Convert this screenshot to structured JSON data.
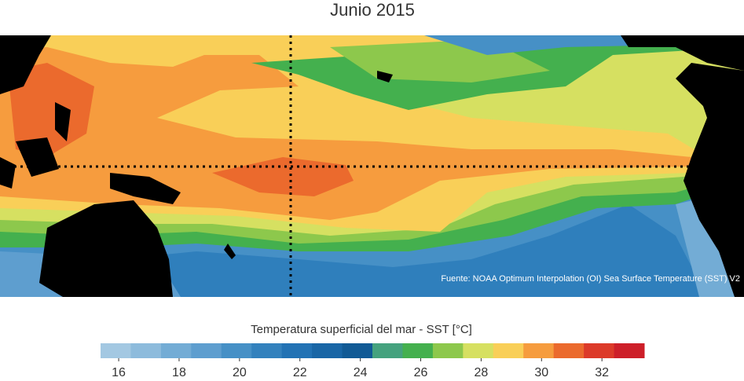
{
  "title": "Junio 2015",
  "source": "Fuente: NOAA Optimum Interpolation (OI) Sea Surface Temperature (SST) V2",
  "colorbar": {
    "label": "Temperatura superficial del mar - SST  [°C]",
    "bins": [
      15.4,
      16.4,
      17.4,
      18.4,
      19.4,
      20.4,
      21.4,
      22.4,
      23.4,
      24.4,
      25.4,
      26.4,
      27.4,
      28.4,
      29.4,
      30.4,
      31.4,
      32.4,
      33.4
    ],
    "colors": [
      "#a3c8e2",
      "#8dbbdc",
      "#73acd5",
      "#5e9ecf",
      "#4690c6",
      "#3381bd",
      "#2272b4",
      "#1966a6",
      "#115a95",
      "#45a27e",
      "#44b04e",
      "#8dc84c",
      "#d6e061",
      "#f9cf58",
      "#f69c3e",
      "#eb6a2d",
      "#dc3a29",
      "#cd1f29",
      "#b21e24"
    ],
    "ticks": [
      16,
      18,
      20,
      22,
      24,
      26,
      28,
      30,
      32
    ]
  }
}
